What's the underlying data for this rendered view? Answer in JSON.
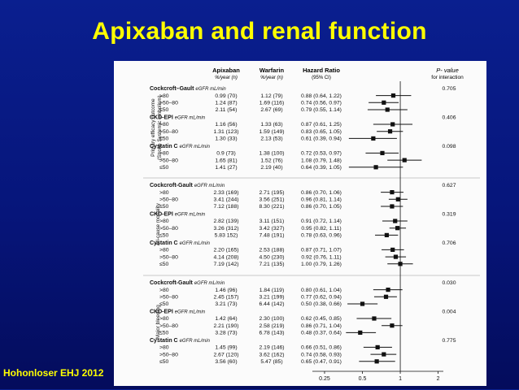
{
  "slide": {
    "title": "Apixaban and renal function",
    "footer": "Hohonloser  EHJ 2012"
  },
  "table": {
    "headers": {
      "apixaban": "Apixaban",
      "apixaban_sub": "%/year (n)",
      "warfarin": "Warfarin",
      "warfarin_sub": "%/year (n)",
      "hr": "Hazard Ratio",
      "hr_sub": "(95% CI)",
      "p": "P- value",
      "p_sub": "for interaction"
    },
    "outcomes": [
      {
        "label1": "Primary efficacy outcome",
        "label2": "(Stroke Systemic embolism)",
        "groups": [
          {
            "name": "Cockcroft–Gault",
            "unit": "eGFR mL/min",
            "p": "0.705",
            "rows": [
              {
                "label": ">80",
                "apix": "0.99 (70)",
                "warf": "1.12 (79)",
                "hr": "0.88 (0.64, 1.22)",
                "est": 0.88,
                "lo": 0.64,
                "hi": 1.22
              },
              {
                "label": ">50–80",
                "apix": "1.24 (87)",
                "warf": "1.69 (116)",
                "hr": "0.74 (0.56, 0.97)",
                "est": 0.74,
                "lo": 0.56,
                "hi": 0.97
              },
              {
                "label": "≤50",
                "apix": "2.11 (54)",
                "warf": "2.67 (69)",
                "hr": "0.79 (0.55, 1.14)",
                "est": 0.79,
                "lo": 0.55,
                "hi": 1.14
              }
            ]
          },
          {
            "name": "CKD-EPI",
            "unit": "eGFR mL/min",
            "p": "0.406",
            "rows": [
              {
                "label": ">80",
                "apix": "1.16 (56)",
                "warf": "1.33 (63)",
                "hr": "0.87 (0.61, 1.25)",
                "est": 0.87,
                "lo": 0.61,
                "hi": 1.25
              },
              {
                "label": ">50–80",
                "apix": "1.31 (123)",
                "warf": "1.59 (149)",
                "hr": "0.83 (0.65, 1.05)",
                "est": 0.83,
                "lo": 0.65,
                "hi": 1.05
              },
              {
                "label": "≤50",
                "apix": "1.30 (33)",
                "warf": "2.13 (53)",
                "hr": "0.61 (0.39, 0.94)",
                "est": 0.61,
                "lo": 0.39,
                "hi": 0.94
              }
            ]
          },
          {
            "name": "Cystatin C",
            "unit": "eGFR mL/min",
            "p": "0.098",
            "rows": [
              {
                "label": ">80",
                "apix": "0.9 (73)",
                "warf": "1.38 (100)",
                "hr": "0.72 (0.53, 0.97)",
                "est": 0.72,
                "lo": 0.53,
                "hi": 0.97
              },
              {
                "label": ">50–80",
                "apix": "1.65 (81)",
                "warf": "1.52 (76)",
                "hr": "1.08 (0.79, 1.48)",
                "est": 1.08,
                "lo": 0.79,
                "hi": 1.48
              },
              {
                "label": "≤50",
                "apix": "1.41 (27)",
                "warf": "2.19 (40)",
                "hr": "0.64 (0.39, 1.05)",
                "est": 0.64,
                "lo": 0.39,
                "hi": 1.05
              }
            ]
          }
        ]
      },
      {
        "label1": "All-cause mortality",
        "label2": "",
        "groups": [
          {
            "name": "Cockcroft-Gault",
            "unit": "eGFR mL/min",
            "p": "0.627",
            "rows": [
              {
                "label": ">80",
                "apix": "2.33 (169)",
                "warf": "2.71 (195)",
                "hr": "0.86 (0.70, 1.06)",
                "est": 0.86,
                "lo": 0.7,
                "hi": 1.06
              },
              {
                "label": ">50–80",
                "apix": "3.41 (244)",
                "warf": "3.56 (251)",
                "hr": "0.96 (0.81, 1.14)",
                "est": 0.96,
                "lo": 0.81,
                "hi": 1.14
              },
              {
                "label": "≤50",
                "apix": "7.12 (188)",
                "warf": "8.30 (221)",
                "hr": "0.86 (0.70, 1.05)",
                "est": 0.86,
                "lo": 0.7,
                "hi": 1.05
              }
            ]
          },
          {
            "name": "CKD-EPI",
            "unit": "eGFR mL/min",
            "p": "0.319",
            "rows": [
              {
                "label": ">80",
                "apix": "2.82 (139)",
                "warf": "3.11 (151)",
                "hr": "0.91 (0.72, 1.14)",
                "est": 0.91,
                "lo": 0.72,
                "hi": 1.14
              },
              {
                "label": ">50–80",
                "apix": "3.26 (312)",
                "warf": "3.42 (327)",
                "hr": "0.95 (0.82, 1.11)",
                "est": 0.95,
                "lo": 0.82,
                "hi": 1.11
              },
              {
                "label": "≤50",
                "apix": "5.83 152)",
                "warf": "7.48 (191)",
                "hr": "0.78 (0.63, 0.96)",
                "est": 0.78,
                "lo": 0.63,
                "hi": 0.96
              }
            ]
          },
          {
            "name": "Cystatin C",
            "unit": "eGFR mL/min",
            "p": "0.706",
            "rows": [
              {
                "label": ">80",
                "apix": "2.20 (165)",
                "warf": "2.53 (188)",
                "hr": "0.87 (0.71, 1.07)",
                "est": 0.87,
                "lo": 0.71,
                "hi": 1.07
              },
              {
                "label": ">50–80",
                "apix": "4.14 (208)",
                "warf": "4.50 (230)",
                "hr": "0.92 (0.76, 1.11)",
                "est": 0.92,
                "lo": 0.76,
                "hi": 1.11
              },
              {
                "label": "≤50",
                "apix": "7.19 (142)",
                "warf": "7.21 (135)",
                "hr": "1.00 (0.79, 1.26)",
                "est": 1.0,
                "lo": 0.79,
                "hi": 1.26
              }
            ]
          }
        ]
      },
      {
        "label1": "Major bleeding",
        "label2": "",
        "groups": [
          {
            "name": "Cockcroft-Gault",
            "unit": "eGFR mL/min",
            "p": "0.030",
            "rows": [
              {
                "label": ">80",
                "apix": "1.46 (96)",
                "warf": "1.84 (119)",
                "hr": "0.80 (0.61, 1.04)",
                "est": 0.8,
                "lo": 0.61,
                "hi": 1.04
              },
              {
                "label": ">50–80",
                "apix": "2.45 (157)",
                "warf": "3.21 (199)",
                "hr": "0.77 (0.62, 0.94)",
                "est": 0.77,
                "lo": 0.62,
                "hi": 0.94
              },
              {
                "label": "≤50",
                "apix": "3.21 (73)",
                "warf": "6.44 (142)",
                "hr": "0.50 (0.38, 0.66)",
                "est": 0.5,
                "lo": 0.38,
                "hi": 0.66
              }
            ]
          },
          {
            "name": "CKD-EPI",
            "unit": "eGFR mL/min",
            "p": "0.004",
            "rows": [
              {
                "label": ">80",
                "apix": "1.42 (64)",
                "warf": "2.30 (100)",
                "hr": "0.62 (0.45, 0.85)",
                "est": 0.62,
                "lo": 0.45,
                "hi": 0.85
              },
              {
                "label": ">50–80",
                "apix": "2.21 (190)",
                "warf": "2.58 (219)",
                "hr": "0.86 (0.71, 1.04)",
                "est": 0.86,
                "lo": 0.71,
                "hi": 1.04
              },
              {
                "label": "≤50",
                "apix": "3.28 (73)",
                "warf": "6.78 (143)",
                "hr": "0.48 (0.37, 0.64)",
                "est": 0.48,
                "lo": 0.37,
                "hi": 0.64
              }
            ]
          },
          {
            "name": "Cystatin C",
            "unit": "eGFR mL/min",
            "p": "0.775",
            "rows": [
              {
                "label": ">80",
                "apix": "1.45 (99)",
                "warf": "2.19 (146)",
                "hr": "0.66 (0.51, 0.86)",
                "est": 0.66,
                "lo": 0.51,
                "hi": 0.86
              },
              {
                "label": ">50–80",
                "apix": "2.67 (120)",
                "warf": "3.62 (162)",
                "hr": "0.74 (0.58, 0.93)",
                "est": 0.74,
                "lo": 0.58,
                "hi": 0.93
              },
              {
                "label": "≤50",
                "apix": "3.56 (60)",
                "warf": "5.47 (85)",
                "hr": "0.65 (0.47, 0.91)",
                "est": 0.65,
                "lo": 0.47,
                "hi": 0.91
              }
            ]
          }
        ]
      }
    ],
    "axis_ticks": [
      {
        "value": 0.25,
        "label": "0.25"
      },
      {
        "value": 0.5,
        "label": "0.5"
      },
      {
        "value": 1,
        "label": "1"
      },
      {
        "value": 2,
        "label": "2"
      }
    ],
    "axis_scale": "log",
    "axis_range": [
      0.2,
      2.2
    ],
    "reference_value": 1,
    "colors": {
      "ink": "#111111",
      "panel": "#fbfbfb"
    }
  }
}
